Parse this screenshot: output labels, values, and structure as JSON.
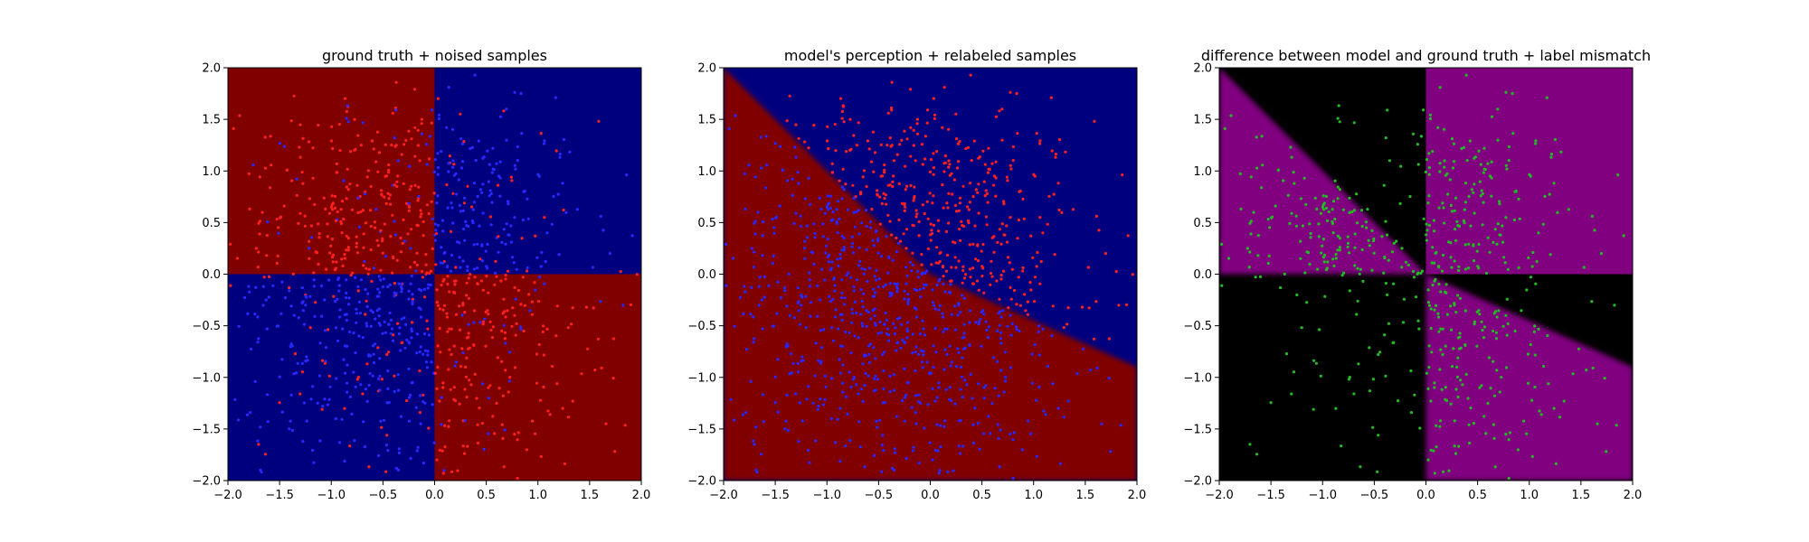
{
  "figure": {
    "background": "#ffffff"
  },
  "colors": {
    "red_region": "#800000",
    "blue_region": "#00007f",
    "magenta_region": "#800080",
    "black_region": "#000000",
    "red_point": "#ff2020",
    "blue_point": "#2828ff",
    "green_point": "#22bb22"
  },
  "chart_data": [
    {
      "type": "heatmap",
      "title": "ground truth + noised samples",
      "xlabel": "",
      "ylabel": "",
      "xlim": [
        -2.0,
        2.0
      ],
      "ylim": [
        -2.0,
        2.0
      ],
      "xticks": [
        "−2.0",
        "−1.5",
        "−1.0",
        "−0.5",
        "0.0",
        "0.5",
        "1.0",
        "1.5",
        "2.0"
      ],
      "yticks": [
        "−2.0",
        "−1.5",
        "−1.0",
        "−0.5",
        "0.0",
        "0.5",
        "1.0",
        "1.5",
        "2.0"
      ],
      "background": "ground truth: red where x*y < 0, blue where x*y > 0",
      "regions": "quadrant",
      "points": "noised samples (red and blue, ~1000)",
      "grid": false
    },
    {
      "type": "heatmap",
      "title": "model's perception + relabeled samples",
      "xlabel": "",
      "ylabel": "",
      "xlim": [
        -2.0,
        2.0
      ],
      "ylim": [
        -2.0,
        2.0
      ],
      "xticks": [
        "−2.0",
        "−1.5",
        "−1.0",
        "−0.5",
        "0.0",
        "0.5",
        "1.0",
        "1.5",
        "2.0"
      ],
      "yticks": [
        "−2.0",
        "−1.5",
        "−1.0",
        "−0.5",
        "0.0",
        "0.5",
        "1.0",
        "1.5",
        "2.0"
      ],
      "regions": "model",
      "decision_boundary": [
        [
          -2.0,
          2.0
        ],
        [
          0.0,
          0.0
        ],
        [
          2.0,
          -0.9
        ]
      ],
      "points": "relabeled samples (red and blue, ~1000)",
      "grid": false
    },
    {
      "type": "heatmap",
      "title": "difference between model and ground truth + label mismatch",
      "xlabel": "",
      "ylabel": "",
      "xlim": [
        -2.0,
        2.0
      ],
      "ylim": [
        -2.0,
        2.0
      ],
      "xticks": [
        "−2.0",
        "−1.5",
        "−1.0",
        "−0.5",
        "0.0",
        "0.5",
        "1.0",
        "1.5",
        "2.0"
      ],
      "yticks": [
        "−2.0",
        "−1.5",
        "−1.0",
        "−0.5",
        "0.0",
        "0.5",
        "1.0",
        "1.5",
        "2.0"
      ],
      "regions": "difference",
      "points": "label mismatch samples (green, ~300)",
      "grid": false
    }
  ]
}
